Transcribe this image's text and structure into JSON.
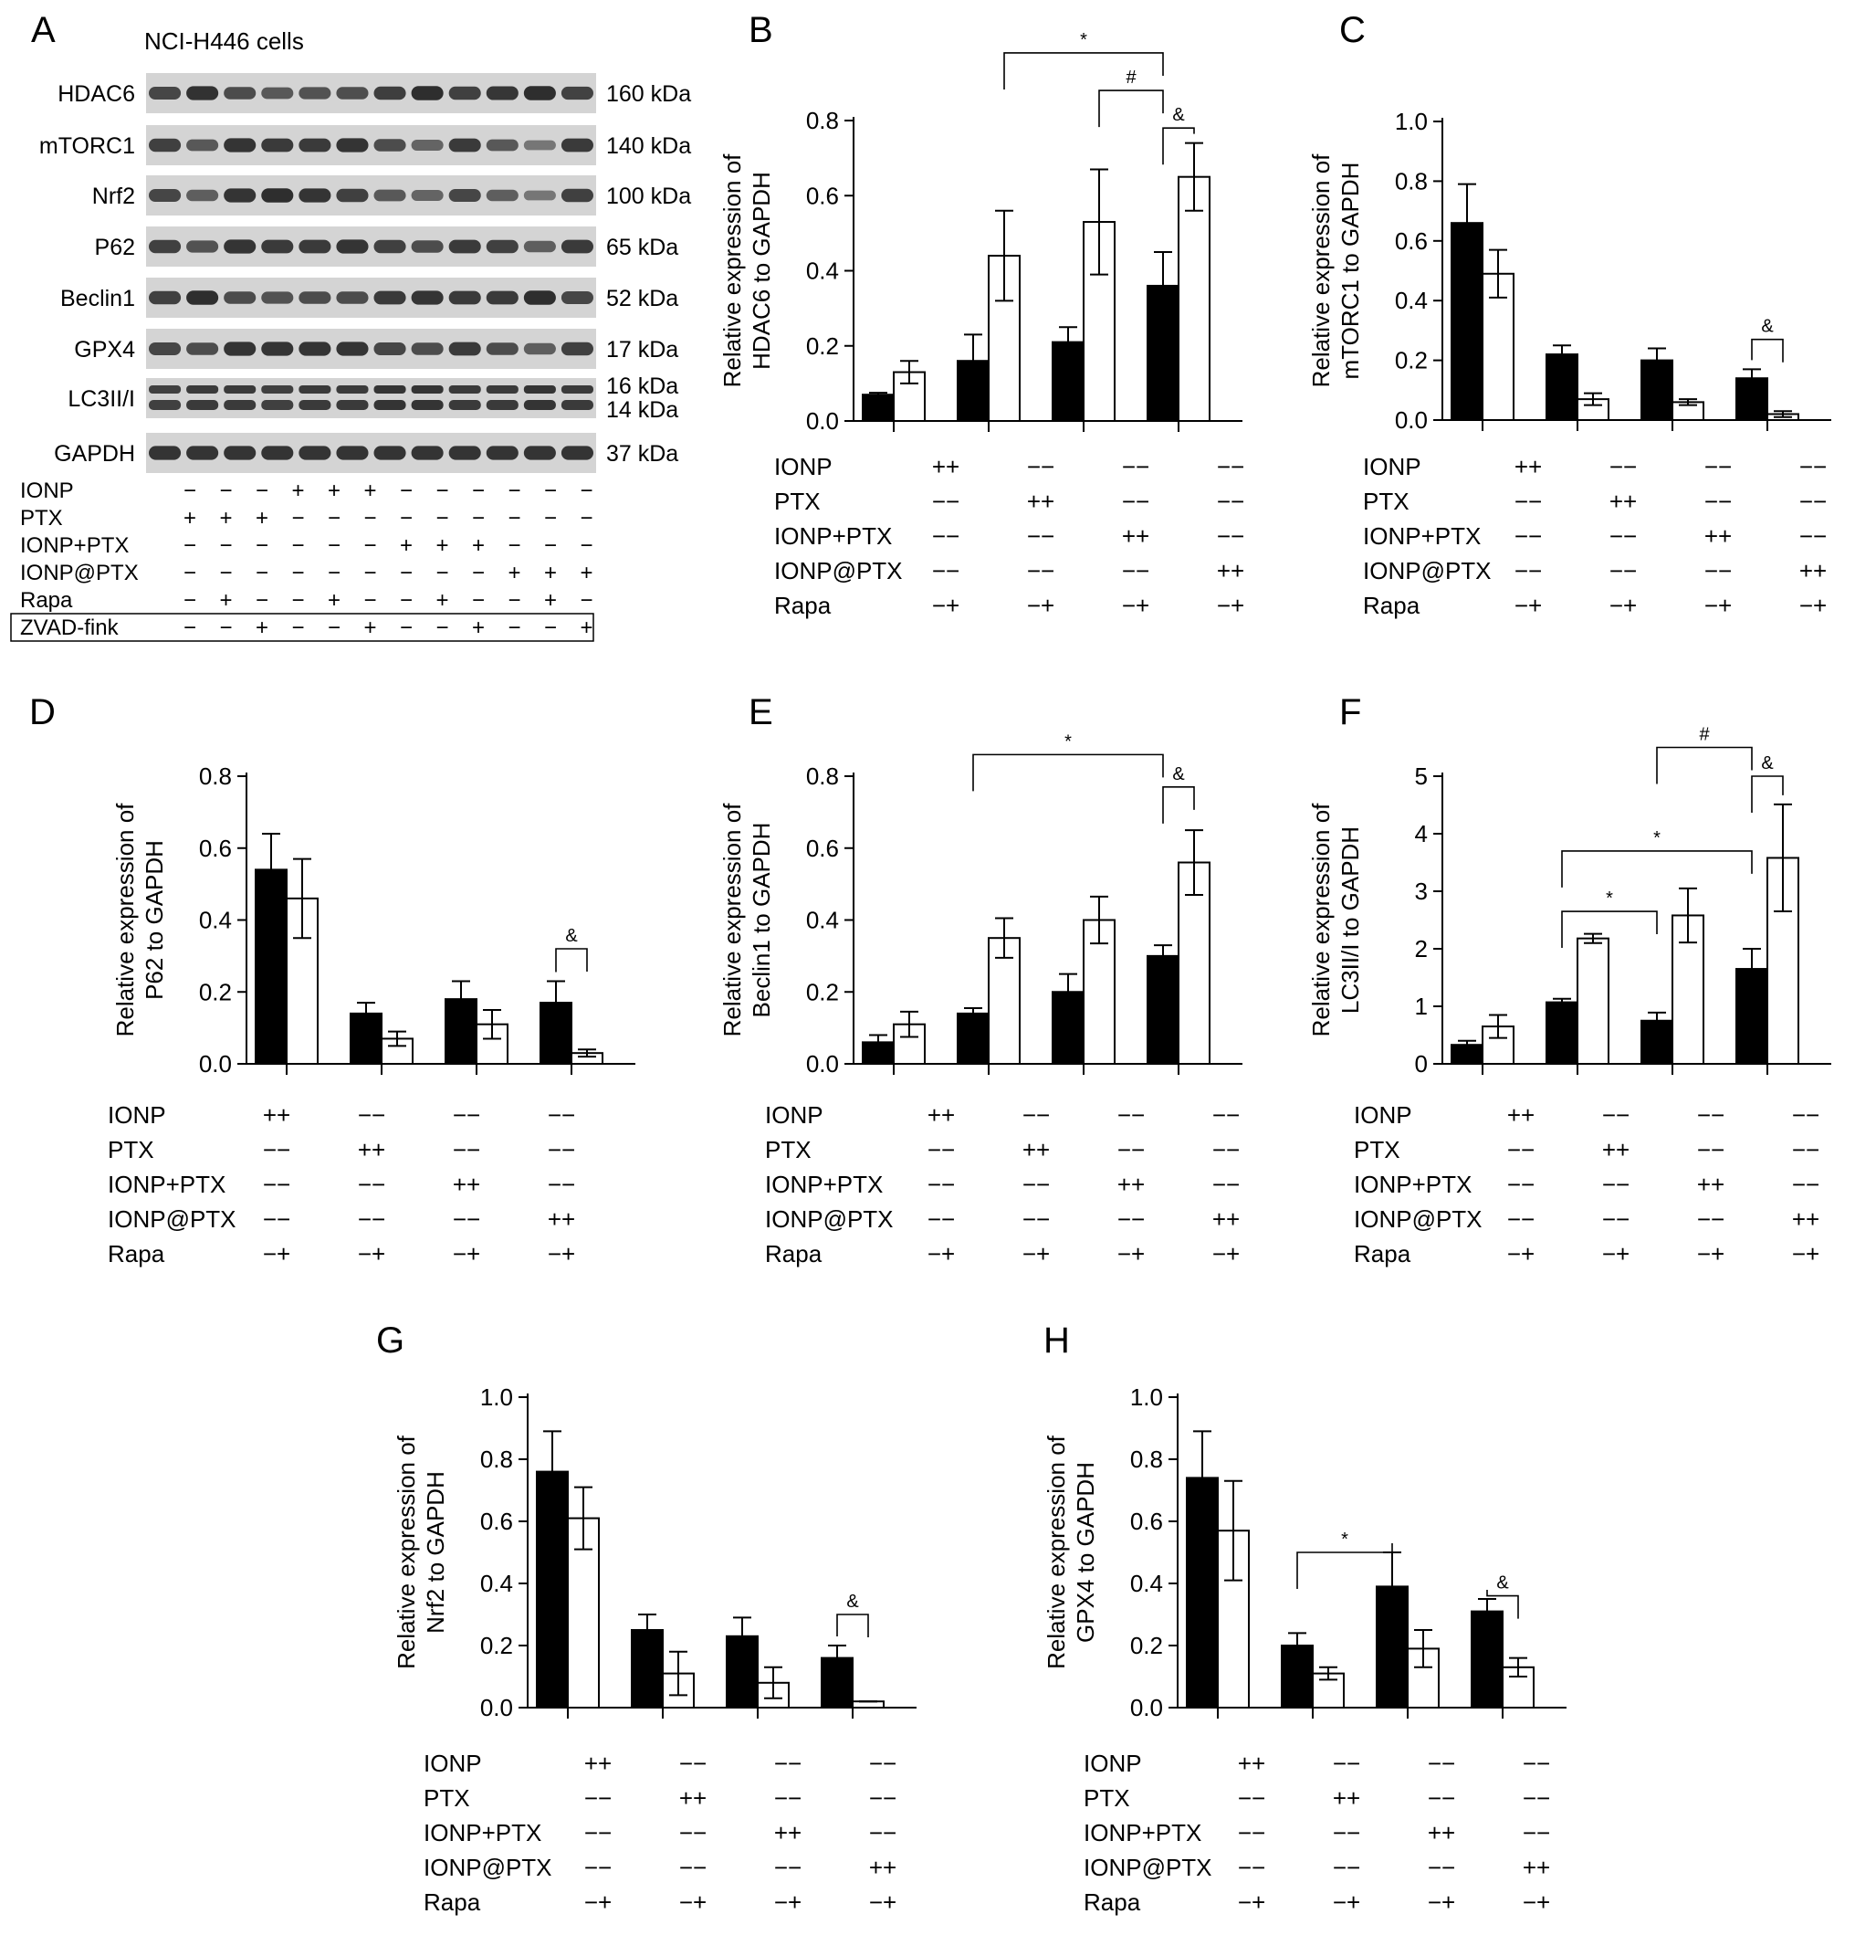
{
  "figure": {
    "blot": {
      "letter": "A",
      "cell_line": "NCI-H446 cells",
      "proteins": [
        {
          "name": "HDAC6",
          "weight": "160 kDa",
          "intensity": [
            0.75,
            0.92,
            0.7,
            0.6,
            0.65,
            0.68,
            0.82,
            0.95,
            0.8,
            0.88,
            0.95,
            0.78
          ]
        },
        {
          "name": "mTORC1",
          "weight": "140 kDa",
          "intensity": [
            0.8,
            0.6,
            0.9,
            0.85,
            0.85,
            0.9,
            0.7,
            0.5,
            0.85,
            0.6,
            0.35,
            0.85
          ]
        },
        {
          "name": "Nrf2",
          "weight": "100 kDa",
          "intensity": [
            0.75,
            0.55,
            0.9,
            0.95,
            0.9,
            0.8,
            0.6,
            0.5,
            0.75,
            0.55,
            0.35,
            0.8
          ]
        },
        {
          "name": "P62",
          "weight": "65 kDa",
          "intensity": [
            0.8,
            0.65,
            0.9,
            0.85,
            0.85,
            0.9,
            0.8,
            0.7,
            0.85,
            0.8,
            0.55,
            0.85
          ]
        },
        {
          "name": "Beclin1",
          "weight": "52 kDa",
          "intensity": [
            0.8,
            0.95,
            0.7,
            0.65,
            0.7,
            0.7,
            0.85,
            0.9,
            0.85,
            0.85,
            0.95,
            0.75
          ]
        },
        {
          "name": "GPX4",
          "weight": "17 kDa",
          "intensity": [
            0.75,
            0.7,
            0.9,
            0.9,
            0.9,
            0.9,
            0.75,
            0.7,
            0.85,
            0.7,
            0.55,
            0.8
          ]
        },
        {
          "name": "LC3II/I",
          "weight": "16 kDa",
          "weight2": "14 kDa",
          "intensity": [
            0.8,
            0.85,
            0.85,
            0.8,
            0.85,
            0.85,
            0.9,
            0.9,
            0.85,
            0.85,
            0.9,
            0.85
          ]
        },
        {
          "name": "GAPDH",
          "weight": "37 kDa",
          "intensity": [
            0.9,
            0.9,
            0.9,
            0.9,
            0.9,
            0.9,
            0.9,
            0.9,
            0.9,
            0.9,
            0.9,
            0.9
          ]
        }
      ],
      "treatments": [
        {
          "label": "IONP",
          "signs": [
            "−",
            "−",
            "−",
            "+",
            "+",
            "+",
            "−",
            "−",
            "−",
            "−",
            "−",
            "−"
          ]
        },
        {
          "label": "PTX",
          "signs": [
            "+",
            "+",
            "+",
            "−",
            "−",
            "−",
            "−",
            "−",
            "−",
            "−",
            "−",
            "−"
          ]
        },
        {
          "label": "IONP+PTX",
          "signs": [
            "−",
            "−",
            "−",
            "−",
            "−",
            "−",
            "+",
            "+",
            "+",
            "−",
            "−",
            "−"
          ]
        },
        {
          "label": "IONP@PTX",
          "signs": [
            "−",
            "−",
            "−",
            "−",
            "−",
            "−",
            "−",
            "−",
            "−",
            "+",
            "+",
            "+"
          ]
        },
        {
          "label": "Rapa",
          "signs": [
            "−",
            "+",
            "−",
            "−",
            "+",
            "−",
            "−",
            "+",
            "−",
            "−",
            "+",
            "−"
          ]
        },
        {
          "label": "ZVAD-fink",
          "signs": [
            "−",
            "−",
            "+",
            "−",
            "−",
            "+",
            "−",
            "−",
            "+",
            "−",
            "−",
            "+"
          ]
        }
      ]
    },
    "table_rows": [
      {
        "label": "IONP",
        "cells": [
          "++",
          "−−",
          "−−",
          "−−"
        ]
      },
      {
        "label": "PTX",
        "cells": [
          "−−",
          "++",
          "−−",
          "−−"
        ]
      },
      {
        "label": "IONP+PTX",
        "cells": [
          "−−",
          "−−",
          "++",
          "−−"
        ]
      },
      {
        "label": "IONP@PTX",
        "cells": [
          "−−",
          "−−",
          "−−",
          "++"
        ]
      },
      {
        "label": "Rapa",
        "cells": [
          "−+",
          "−+",
          "−+",
          "−+"
        ]
      }
    ]
  },
  "chart_data": [
    {
      "letter": "B",
      "type": "bar",
      "ylabel": [
        "Relative expression of",
        "HDAC6 to GAPDH"
      ],
      "ylim": [
        0,
        0.8
      ],
      "ticks": [
        "0.0",
        "0.2",
        "0.4",
        "0.6",
        "0.8"
      ],
      "groups": 4,
      "series": [
        {
          "name": "",
          "fill": "#000000",
          "values": [
            0.07,
            0.16,
            0.21,
            0.36
          ],
          "errors": [
            0.005,
            0.07,
            0.04,
            0.09
          ]
        },
        {
          "name": "",
          "fill": "#ffffff",
          "values": [
            0.13,
            0.44,
            0.53,
            0.65
          ],
          "errors": [
            0.03,
            0.12,
            0.14,
            0.09
          ]
        }
      ],
      "significance": [
        {
          "label": "*",
          "from": [
            1,
            1
          ],
          "to": [
            3,
            0
          ],
          "level": 0.98
        },
        {
          "label": "#",
          "from": [
            2,
            1
          ],
          "to": [
            3,
            0
          ],
          "level": 0.88
        },
        {
          "label": "&",
          "from": [
            3,
            0
          ],
          "to": [
            3,
            1
          ],
          "level": 0.78
        }
      ]
    },
    {
      "letter": "C",
      "type": "bar",
      "ylabel": [
        "Relative expression of",
        "mTORC1 to GAPDH"
      ],
      "ylim": [
        0,
        1.0
      ],
      "ticks": [
        "0.0",
        "0.2",
        "0.4",
        "0.6",
        "0.8",
        "1.0"
      ],
      "groups": 4,
      "series": [
        {
          "name": "",
          "fill": "#000000",
          "values": [
            0.66,
            0.22,
            0.2,
            0.14
          ],
          "errors": [
            0.13,
            0.03,
            0.04,
            0.03
          ]
        },
        {
          "name": "",
          "fill": "#ffffff",
          "values": [
            0.49,
            0.07,
            0.06,
            0.02
          ],
          "errors": [
            0.08,
            0.02,
            0.01,
            0.01
          ]
        }
      ],
      "significance": [
        {
          "label": "&",
          "from": [
            3,
            0
          ],
          "to": [
            3,
            1
          ],
          "level": 0.27
        }
      ]
    },
    {
      "letter": "D",
      "type": "bar",
      "ylabel": [
        "Relative expression of",
        "P62 to GAPDH"
      ],
      "ylim": [
        0,
        0.8
      ],
      "ticks": [
        "0.0",
        "0.2",
        "0.4",
        "0.6",
        "0.8"
      ],
      "groups": 4,
      "series": [
        {
          "name": "",
          "fill": "#000000",
          "values": [
            0.54,
            0.14,
            0.18,
            0.17
          ],
          "errors": [
            0.1,
            0.03,
            0.05,
            0.06
          ]
        },
        {
          "name": "",
          "fill": "#ffffff",
          "values": [
            0.46,
            0.07,
            0.11,
            0.03
          ],
          "errors": [
            0.11,
            0.02,
            0.04,
            0.01
          ]
        }
      ],
      "significance": [
        {
          "label": "&",
          "from": [
            3,
            0
          ],
          "to": [
            3,
            1
          ],
          "level": 0.32
        }
      ]
    },
    {
      "letter": "E",
      "type": "bar",
      "ylabel": [
        "Relative expression of",
        "Beclin1 to GAPDH"
      ],
      "ylim": [
        0,
        0.8
      ],
      "ticks": [
        "0.0",
        "0.2",
        "0.4",
        "0.6",
        "0.8"
      ],
      "groups": 4,
      "series": [
        {
          "name": "",
          "fill": "#000000",
          "values": [
            0.06,
            0.14,
            0.2,
            0.3
          ],
          "errors": [
            0.02,
            0.015,
            0.05,
            0.03
          ]
        },
        {
          "name": "",
          "fill": "#ffffff",
          "values": [
            0.11,
            0.35,
            0.4,
            0.56
          ],
          "errors": [
            0.035,
            0.055,
            0.065,
            0.09
          ]
        }
      ],
      "significance": [
        {
          "label": "*",
          "from": [
            1,
            0
          ],
          "to": [
            3,
            0
          ],
          "level": 0.86
        },
        {
          "label": "&",
          "from": [
            3,
            0
          ],
          "to": [
            3,
            1
          ],
          "level": 0.77
        }
      ]
    },
    {
      "letter": "F",
      "type": "bar",
      "ylabel": [
        "Relative expression of",
        "LC3II/I to GAPDH"
      ],
      "ylim": [
        0,
        5
      ],
      "ticks": [
        "0",
        "1",
        "2",
        "3",
        "4",
        "5"
      ],
      "groups": 4,
      "series": [
        {
          "name": "",
          "fill": "#000000",
          "values": [
            0.33,
            1.07,
            0.75,
            1.65
          ],
          "errors": [
            0.07,
            0.06,
            0.14,
            0.35
          ]
        },
        {
          "name": "",
          "fill": "#ffffff",
          "values": [
            0.65,
            2.18,
            2.58,
            3.58
          ],
          "errors": [
            0.2,
            0.08,
            0.47,
            0.93
          ]
        }
      ],
      "significance": [
        {
          "label": "#",
          "from": [
            2,
            0
          ],
          "to": [
            3,
            0
          ],
          "level": 5.5
        },
        {
          "label": "&",
          "from": [
            3,
            0
          ],
          "to": [
            3,
            1
          ],
          "level": 5.0
        },
        {
          "label": "*",
          "from": [
            1,
            0
          ],
          "to": [
            3,
            0
          ],
          "level": 3.7
        },
        {
          "label": "*",
          "from": [
            1,
            0
          ],
          "to": [
            2,
            0
          ],
          "level": 2.65
        }
      ]
    },
    {
      "letter": "G",
      "type": "bar",
      "ylabel": [
        "Relative expression of",
        "Nrf2 to GAPDH"
      ],
      "ylim": [
        0,
        1.0
      ],
      "ticks": [
        "0.0",
        "0.2",
        "0.4",
        "0.6",
        "0.8",
        "1.0"
      ],
      "groups": 4,
      "series": [
        {
          "name": "",
          "fill": "#000000",
          "values": [
            0.76,
            0.25,
            0.23,
            0.16
          ],
          "errors": [
            0.13,
            0.05,
            0.06,
            0.04
          ]
        },
        {
          "name": "",
          "fill": "#ffffff",
          "values": [
            0.61,
            0.11,
            0.08,
            0.02
          ],
          "errors": [
            0.1,
            0.07,
            0.05,
            0.0
          ]
        }
      ],
      "significance": [
        {
          "label": "&",
          "from": [
            3,
            0
          ],
          "to": [
            3,
            1
          ],
          "level": 0.3
        }
      ]
    },
    {
      "letter": "H",
      "type": "bar",
      "ylabel": [
        "Relative expression of",
        "GPX4 to GAPDH"
      ],
      "ylim": [
        0,
        1.0
      ],
      "ticks": [
        "0.0",
        "0.2",
        "0.4",
        "0.6",
        "0.8",
        "1.0"
      ],
      "groups": 4,
      "series": [
        {
          "name": "",
          "fill": "#000000",
          "values": [
            0.74,
            0.2,
            0.39,
            0.31
          ],
          "errors": [
            0.15,
            0.04,
            0.11,
            0.04
          ]
        },
        {
          "name": "",
          "fill": "#ffffff",
          "values": [
            0.57,
            0.11,
            0.19,
            0.13
          ],
          "errors": [
            0.16,
            0.02,
            0.06,
            0.03
          ]
        }
      ],
      "significance": [
        {
          "label": "*",
          "from": [
            1,
            0
          ],
          "to": [
            2,
            0
          ],
          "level": 0.5
        },
        {
          "label": "&",
          "from": [
            3,
            0
          ],
          "to": [
            3,
            1
          ],
          "level": 0.36
        }
      ]
    }
  ]
}
